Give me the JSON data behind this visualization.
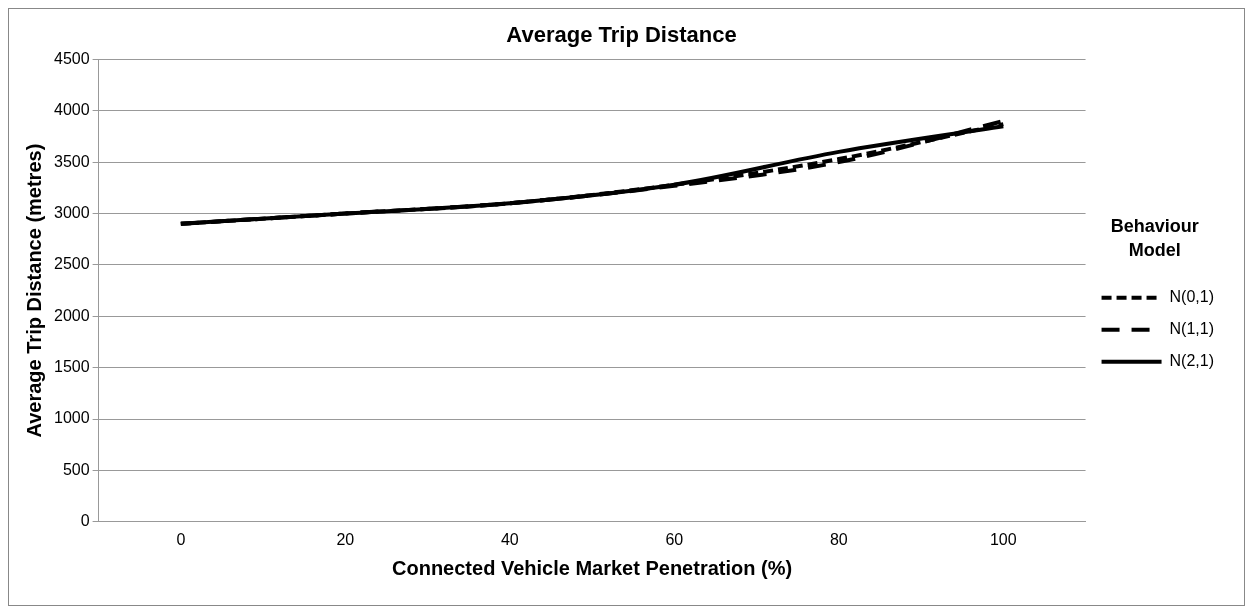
{
  "chart_data": {
    "type": "line",
    "title": "Average Trip Distance",
    "xlabel": "Connected Vehicle Market Penetration (%)",
    "ylabel": "Average Trip Distance (metres)",
    "legend_title": "Behaviour Model",
    "categories": [
      "0",
      "20",
      "40",
      "60",
      "80",
      "100"
    ],
    "series": [
      {
        "name": "N(0,1)",
        "color": "#000000",
        "line_style": "dashed",
        "values": [
          2900,
          3000,
          3100,
          3280,
          3530,
          3870
        ]
      },
      {
        "name": "N(1,1)",
        "color": "#000000",
        "line_style": "dashed",
        "values": [
          2900,
          3000,
          3100,
          3270,
          3500,
          3900
        ]
      },
      {
        "name": "N(2,1)",
        "color": "#000000",
        "line_style": "solid",
        "values": [
          2900,
          3000,
          3100,
          3280,
          3600,
          3850
        ]
      }
    ],
    "ylim": [
      0,
      4500
    ],
    "yticks": [
      0,
      500,
      1000,
      1500,
      2000,
      2500,
      3000,
      3500,
      4000,
      4500
    ],
    "grid": "y",
    "legend": "right",
    "marker": "none"
  }
}
